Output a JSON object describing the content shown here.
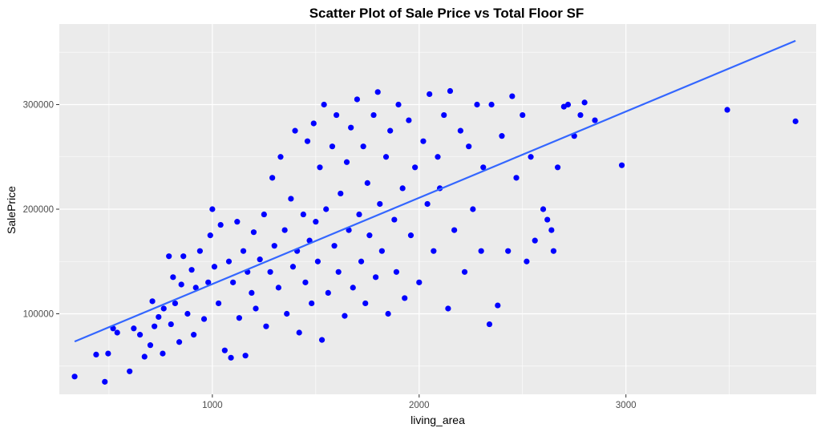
{
  "chart_data": {
    "type": "scatter",
    "title": "Scatter Plot of Sale Price vs Total Floor SF",
    "xlabel": "living_area",
    "ylabel": "SalePrice",
    "xlim": [
      260,
      3920
    ],
    "ylim": [
      23000,
      377000
    ],
    "x_ticks": [
      1000,
      2000,
      3000
    ],
    "x_tick_labels": [
      "1000",
      "2000",
      "3000"
    ],
    "y_ticks": [
      100000,
      200000,
      300000
    ],
    "y_tick_labels": [
      "100000",
      "200000",
      "300000"
    ],
    "grid": true,
    "legend": "none",
    "colors": {
      "panel_background": "#EBEBEB",
      "grid": "#FFFFFF",
      "point": "#0000FF",
      "trend_line": "#3366FF",
      "tick_text": "#4D4D4D"
    },
    "trend_line": {
      "type": "linear",
      "x": [
        334,
        3820
      ],
      "y": [
        73500,
        361000
      ]
    },
    "series": [
      {
        "values": [
          [
            334,
            40000
          ],
          [
            480,
            35000
          ],
          [
            438,
            61000
          ],
          [
            520,
            86000
          ],
          [
            496,
            62000
          ],
          [
            540,
            82000
          ],
          [
            600,
            45000
          ],
          [
            620,
            86000
          ],
          [
            650,
            80000
          ],
          [
            672,
            59000
          ],
          [
            700,
            70000
          ],
          [
            710,
            112000
          ],
          [
            720,
            88000
          ],
          [
            740,
            97000
          ],
          [
            760,
            62000
          ],
          [
            765,
            105000
          ],
          [
            790,
            155000
          ],
          [
            800,
            90000
          ],
          [
            810,
            135000
          ],
          [
            820,
            110000
          ],
          [
            840,
            73000
          ],
          [
            850,
            128000
          ],
          [
            860,
            155000
          ],
          [
            880,
            100000
          ],
          [
            900,
            142000
          ],
          [
            910,
            80000
          ],
          [
            920,
            125000
          ],
          [
            940,
            160000
          ],
          [
            960,
            95000
          ],
          [
            980,
            130000
          ],
          [
            990,
            175000
          ],
          [
            1000,
            200000
          ],
          [
            1010,
            145000
          ],
          [
            1030,
            110000
          ],
          [
            1040,
            185000
          ],
          [
            1060,
            65000
          ],
          [
            1080,
            150000
          ],
          [
            1090,
            58000
          ],
          [
            1100,
            130000
          ],
          [
            1120,
            188000
          ],
          [
            1130,
            96000
          ],
          [
            1150,
            160000
          ],
          [
            1160,
            60000
          ],
          [
            1170,
            140000
          ],
          [
            1190,
            120000
          ],
          [
            1200,
            178000
          ],
          [
            1210,
            105000
          ],
          [
            1230,
            152000
          ],
          [
            1250,
            195000
          ],
          [
            1260,
            88000
          ],
          [
            1280,
            140000
          ],
          [
            1290,
            230000
          ],
          [
            1300,
            165000
          ],
          [
            1320,
            125000
          ],
          [
            1330,
            250000
          ],
          [
            1350,
            180000
          ],
          [
            1360,
            100000
          ],
          [
            1380,
            210000
          ],
          [
            1390,
            145000
          ],
          [
            1400,
            275000
          ],
          [
            1410,
            160000
          ],
          [
            1420,
            82000
          ],
          [
            1440,
            195000
          ],
          [
            1450,
            130000
          ],
          [
            1460,
            265000
          ],
          [
            1470,
            170000
          ],
          [
            1480,
            110000
          ],
          [
            1490,
            282000
          ],
          [
            1500,
            188000
          ],
          [
            1510,
            150000
          ],
          [
            1520,
            240000
          ],
          [
            1530,
            75000
          ],
          [
            1540,
            300000
          ],
          [
            1550,
            200000
          ],
          [
            1560,
            120000
          ],
          [
            1580,
            260000
          ],
          [
            1590,
            165000
          ],
          [
            1600,
            290000
          ],
          [
            1610,
            140000
          ],
          [
            1620,
            215000
          ],
          [
            1640,
            98000
          ],
          [
            1650,
            245000
          ],
          [
            1660,
            180000
          ],
          [
            1670,
            278000
          ],
          [
            1680,
            125000
          ],
          [
            1700,
            305000
          ],
          [
            1710,
            195000
          ],
          [
            1720,
            150000
          ],
          [
            1730,
            260000
          ],
          [
            1740,
            110000
          ],
          [
            1750,
            225000
          ],
          [
            1760,
            175000
          ],
          [
            1780,
            290000
          ],
          [
            1790,
            135000
          ],
          [
            1800,
            312000
          ],
          [
            1810,
            205000
          ],
          [
            1820,
            160000
          ],
          [
            1840,
            250000
          ],
          [
            1850,
            100000
          ],
          [
            1860,
            275000
          ],
          [
            1880,
            190000
          ],
          [
            1890,
            140000
          ],
          [
            1900,
            300000
          ],
          [
            1920,
            220000
          ],
          [
            1930,
            115000
          ],
          [
            1950,
            285000
          ],
          [
            1960,
            175000
          ],
          [
            1980,
            240000
          ],
          [
            2000,
            130000
          ],
          [
            2020,
            265000
          ],
          [
            2040,
            205000
          ],
          [
            2050,
            310000
          ],
          [
            2070,
            160000
          ],
          [
            2090,
            250000
          ],
          [
            2100,
            220000
          ],
          [
            2120,
            290000
          ],
          [
            2140,
            105000
          ],
          [
            2150,
            313000
          ],
          [
            2170,
            180000
          ],
          [
            2200,
            275000
          ],
          [
            2220,
            140000
          ],
          [
            2240,
            260000
          ],
          [
            2260,
            200000
          ],
          [
            2280,
            300000
          ],
          [
            2300,
            160000
          ],
          [
            2310,
            240000
          ],
          [
            2340,
            90000
          ],
          [
            2350,
            300000
          ],
          [
            2380,
            108000
          ],
          [
            2400,
            270000
          ],
          [
            2430,
            160000
          ],
          [
            2450,
            308000
          ],
          [
            2470,
            230000
          ],
          [
            2500,
            290000
          ],
          [
            2520,
            150000
          ],
          [
            2540,
            250000
          ],
          [
            2560,
            170000
          ],
          [
            2600,
            200000
          ],
          [
            2620,
            190000
          ],
          [
            2640,
            180000
          ],
          [
            2650,
            160000
          ],
          [
            2670,
            240000
          ],
          [
            2700,
            298000
          ],
          [
            2720,
            300000
          ],
          [
            2750,
            270000
          ],
          [
            2780,
            290000
          ],
          [
            2800,
            302000
          ],
          [
            2850,
            285000
          ],
          [
            2980,
            242000
          ],
          [
            3490,
            295000
          ],
          [
            3820,
            284000
          ]
        ]
      }
    ]
  }
}
